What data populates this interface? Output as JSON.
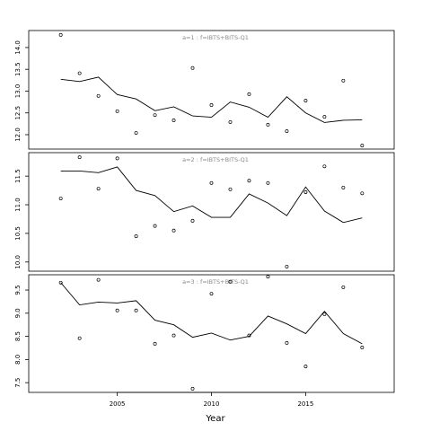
{
  "chart_data": [
    {
      "type": "line",
      "title": "a=1 : f=IBTS+BITS-Q1",
      "x": [
        2002,
        2003,
        2004,
        2005,
        2006,
        2007,
        2008,
        2009,
        2010,
        2011,
        2012,
        2013,
        2014,
        2015,
        2016,
        2017,
        2018
      ],
      "series": [
        {
          "style": "line",
          "color": "#000000",
          "values": [
            13.27,
            13.22,
            13.32,
            12.92,
            12.82,
            12.55,
            12.64,
            12.43,
            12.4,
            12.75,
            12.63,
            12.4,
            12.87,
            12.5,
            12.28,
            12.33,
            12.34
          ]
        },
        {
          "style": "points",
          "color": "#000000",
          "values": [
            14.29,
            13.41,
            12.89,
            12.54,
            12.04,
            12.45,
            12.33,
            13.53,
            12.68,
            12.29,
            12.93,
            12.23,
            12.08,
            12.78,
            12.41,
            13.24,
            11.75
          ]
        }
      ],
      "xlim": [
        2000.3,
        2019.7
      ],
      "ylim": [
        11.67,
        14.39
      ],
      "yticks": [
        {
          "value": 12,
          "label": "12.0"
        },
        12.5,
        {
          "value": 13,
          "label": "13.0"
        },
        13.5,
        {
          "value": 14,
          "label": "14.0"
        }
      ]
    },
    {
      "type": "line",
      "title": "a=2 : f=IBTS+BITS-Q1",
      "x": [
        2002,
        2003,
        2004,
        2005,
        2006,
        2007,
        2008,
        2009,
        2010,
        2011,
        2012,
        2013,
        2014,
        2015,
        2016,
        2017,
        2018
      ],
      "series": [
        {
          "style": "line",
          "color": "#000000",
          "values": [
            11.59,
            11.59,
            11.56,
            11.66,
            11.25,
            11.16,
            10.88,
            10.98,
            10.78,
            10.78,
            11.19,
            11.03,
            10.81,
            11.31,
            10.89,
            10.69,
            10.77
          ]
        },
        {
          "style": "points",
          "color": "#000000",
          "values": [
            11.11,
            11.83,
            11.28,
            11.81,
            10.45,
            10.63,
            10.55,
            10.72,
            11.38,
            11.27,
            11.42,
            11.38,
            9.92,
            11.22,
            11.67,
            11.3,
            11.2
          ]
        }
      ],
      "xlim": [
        2000.3,
        2019.7
      ],
      "ylim": [
        9.84,
        11.91
      ],
      "yticks": [
        {
          "value": 10,
          "label": "10.0"
        },
        10.5,
        {
          "value": 11,
          "label": "11.0"
        },
        11.5
      ]
    },
    {
      "type": "line",
      "title": "a=3 : f=IBTS+BITS-Q1",
      "x": [
        2002,
        2003,
        2004,
        2005,
        2006,
        2007,
        2008,
        2009,
        2010,
        2011,
        2012,
        2013,
        2014,
        2015,
        2016,
        2017,
        2018
      ],
      "series": [
        {
          "style": "line",
          "color": "#000000",
          "values": [
            9.66,
            9.18,
            9.24,
            9.22,
            9.27,
            8.85,
            8.75,
            8.48,
            8.57,
            8.42,
            8.5,
            8.94,
            8.77,
            8.56,
            9.04,
            8.56,
            8.34
          ]
        },
        {
          "style": "points",
          "color": "#000000",
          "values": [
            9.66,
            8.46,
            9.72,
            9.06,
            9.06,
            8.34,
            8.52,
            7.37,
            9.42,
            9.68,
            8.52,
            9.79,
            8.36,
            7.85,
            8.98,
            9.56,
            8.26
          ]
        }
      ],
      "xlim": [
        2000.3,
        2019.7
      ],
      "ylim": [
        7.29,
        9.83
      ],
      "yticks": [
        7.5,
        {
          "value": 8,
          "label": "8.0"
        },
        8.5,
        {
          "value": 9,
          "label": "9.0"
        },
        9.5
      ],
      "xticks": [
        2005,
        2010,
        2015
      ],
      "xlabel": "Year"
    }
  ]
}
